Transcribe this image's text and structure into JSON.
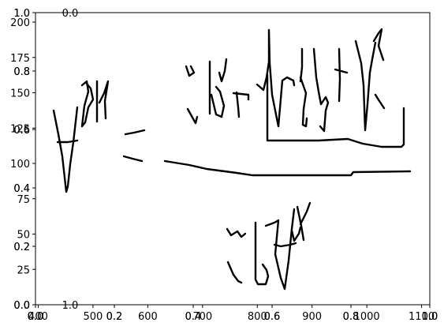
{
  "chart_data": [
    {
      "type": "scatter",
      "title": "",
      "xlabel": "",
      "ylabel": "",
      "xlim": [
        0.0,
        1.0
      ],
      "ylim": [
        0.0,
        1.0
      ],
      "xticks": [
        "0.0",
        "0.2",
        "0.4",
        "0.6",
        "0.8",
        "1.0"
      ],
      "yticks": [
        "0.0",
        "0.2",
        "0.4",
        "0.6",
        "0.8",
        "1.0"
      ],
      "grid": false
    },
    {
      "type": "line",
      "title": "",
      "xlabel": "",
      "ylabel": "",
      "xlim": [
        0.0,
        1.0
      ],
      "ylim": [
        0.0,
        1.0
      ],
      "xticks": [
        "0.0",
        "0.2",
        "0.4",
        "0.6",
        "0.8",
        "1.0"
      ],
      "yticks": [
        "0.0",
        "0.2",
        "0.4",
        "0.6",
        "0.8",
        "1.0"
      ],
      "grid": false
    },
    {
      "type": "line",
      "title": "",
      "xlabel": "",
      "ylabel": "",
      "xlim": [
        395,
        1115
      ],
      "ylim": [
        0,
        200
      ],
      "xticks": [
        "400",
        "500",
        "600",
        "700",
        "800",
        "900",
        "1000",
        "1100"
      ],
      "yticks": [
        "0",
        "25",
        "50",
        "75",
        "100",
        "125",
        "150",
        "175",
        "200"
      ],
      "grid": false,
      "series": [
        {
          "x": [
            400,
            420,
            440,
            460,
            480,
            500,
            520,
            540,
            560,
            580,
            600
          ],
          "y": [
            172,
            154,
            136,
            118,
            99,
            82,
            107,
            126,
            141,
            148,
            152
          ]
        },
        {
          "x": [
            407,
            420,
            432,
            444,
            448
          ],
          "y": [
            147,
            146,
            145,
            146,
            146
          ]
        },
        {
          "x": [
            540,
            550,
            560,
            570,
            580
          ],
          "y": [
            101,
            100,
            99,
            98,
            97
          ]
        },
        {
          "x": [
            600,
            620,
            640,
            660,
            680,
            700,
            720,
            740,
            760,
            780,
            800,
            820,
            840,
            860,
            880,
            900,
            920,
            940,
            960,
            980,
            1000,
            1020,
            1040,
            1060,
            1080,
            1100,
            1110
          ],
          "y": [
            98,
            97,
            95.5,
            94,
            92.5,
            91,
            90,
            88.5,
            87.5,
            86,
            85,
            84,
            83,
            82,
            81,
            80,
            79,
            78,
            77,
            76,
            75,
            74,
            73.5,
            73,
            72.5,
            72,
            72
          ]
        },
        {
          "x": [
            870,
            880,
            900,
            920,
            940,
            960,
            980,
            1000,
            1020,
            1040,
            1060,
            1080,
            1100
          ],
          "y": [
            115,
            116,
            117,
            118,
            119,
            119,
            118,
            117,
            116,
            115,
            114,
            113,
            112
          ]
        },
        {
          "x": [
            700,
            720,
            740,
            760,
            780,
            800,
            820,
            840,
            860,
            880,
            900,
            920
          ],
          "y": [
            43,
            47,
            51,
            55,
            59,
            63,
            67,
            71,
            75,
            79,
            83,
            87
          ]
        }
      ]
    }
  ]
}
